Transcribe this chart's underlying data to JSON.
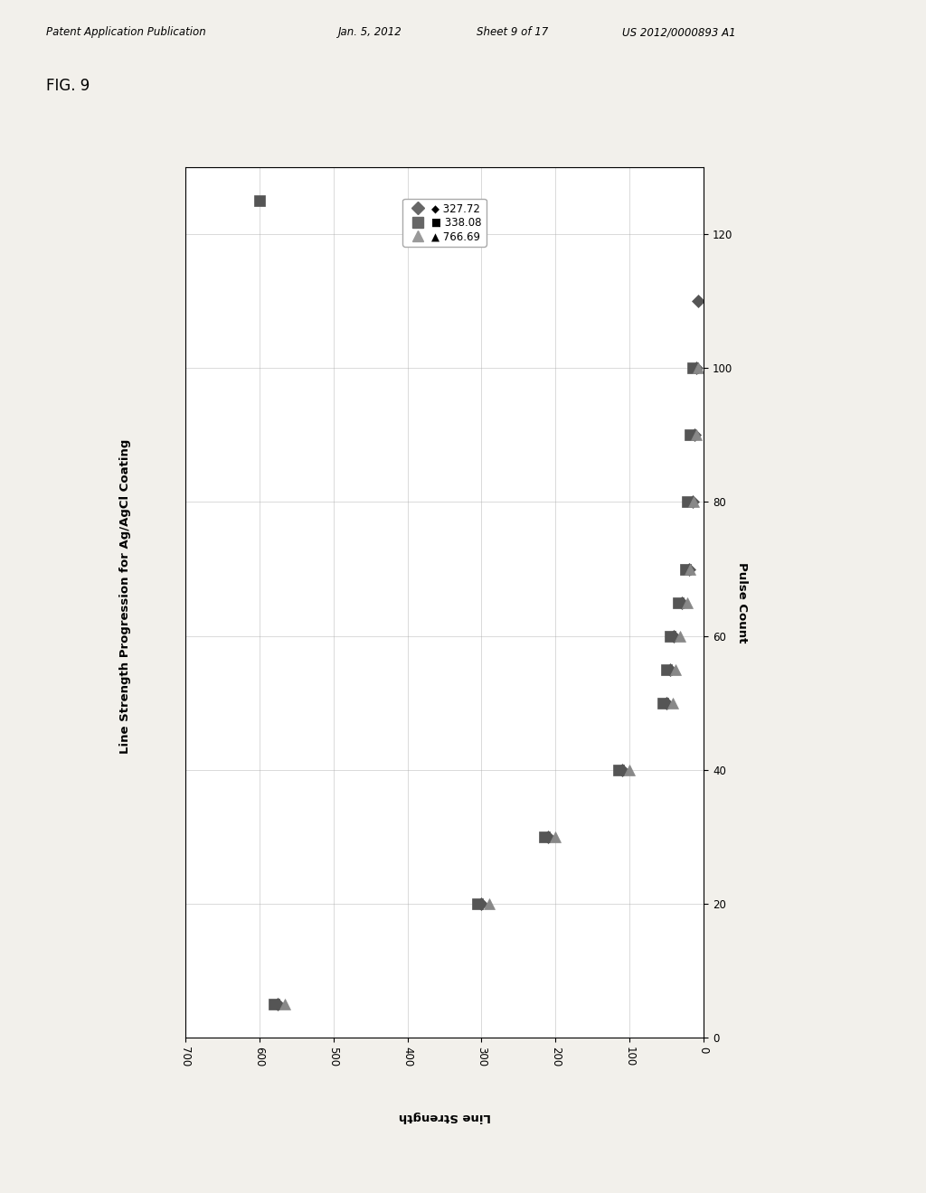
{
  "title": "Line Strength Progression for Ag/AgCl Coating",
  "fig_label": "FIG. 9",
  "patent_line1": "Patent Application Publication",
  "patent_line2": "Jan. 5, 2012",
  "patent_line3": "Sheet 9 of 17",
  "patent_line4": "US 2012/0000893 A1",
  "series": [
    {
      "label": "327.72",
      "marker": "D",
      "color": "#555555",
      "ls_values": [
        575,
        300,
        210,
        110,
        50,
        45,
        40,
        30,
        20,
        15,
        12,
        10,
        8
      ],
      "pc_values": [
        5,
        20,
        30,
        40,
        50,
        55,
        60,
        65,
        70,
        80,
        90,
        100,
        110
      ]
    },
    {
      "label": "338.08",
      "marker": "s",
      "color": "#555555",
      "ls_values": [
        580,
        305,
        215,
        115,
        55,
        50,
        45,
        35,
        25,
        22,
        18,
        15,
        600
      ],
      "pc_values": [
        5,
        20,
        30,
        40,
        50,
        55,
        60,
        65,
        70,
        80,
        90,
        100,
        125
      ]
    },
    {
      "label": "766.69",
      "marker": "^",
      "color": "#888888",
      "ls_values": [
        565,
        290,
        200,
        100,
        42,
        38,
        32,
        22,
        18,
        14,
        10,
        8
      ],
      "pc_values": [
        5,
        20,
        30,
        40,
        50,
        55,
        60,
        65,
        70,
        80,
        90,
        100
      ]
    }
  ],
  "x_lim": [
    0,
    700
  ],
  "y_lim": [
    0,
    130
  ],
  "x_ticks": [
    0,
    100,
    200,
    300,
    400,
    500,
    600,
    700
  ],
  "y_ticks": [
    0,
    20,
    40,
    60,
    80,
    100,
    120
  ],
  "bg_color": "#f2f0eb",
  "plot_bg": "#ffffff",
  "grid_color": "#aaaaaa",
  "marker_sizes": [
    7,
    9,
    9
  ]
}
